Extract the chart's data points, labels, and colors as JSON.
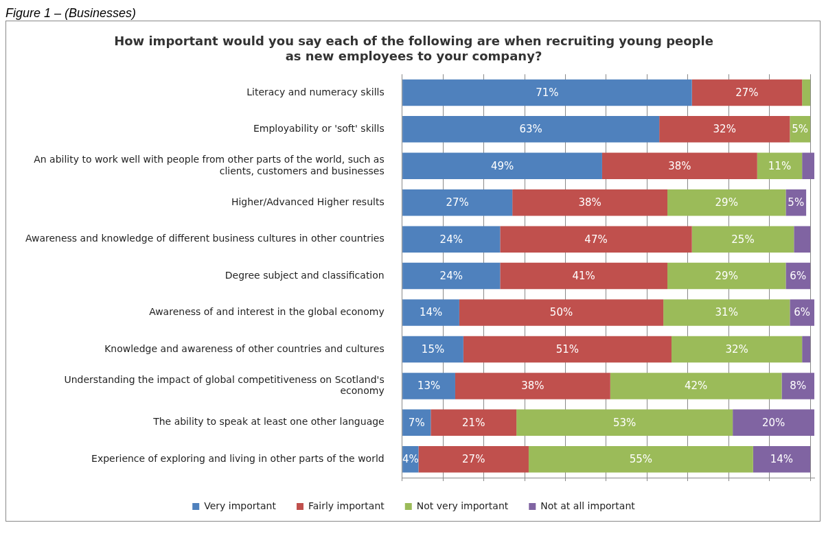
{
  "chart_data": {
    "type": "bar",
    "orientation": "horizontal",
    "stacked": true,
    "title": "How important would you say each of the following are when recruiting young people as new employees to your company?",
    "annotations": [
      "Figure 1 – (Businesses)"
    ],
    "categories": [
      "Literacy and numeracy skills",
      "Employability or 'soft' skills",
      "An ability to work well with people from other parts of the world, such as clients, customers and businesses",
      "Higher/Advanced Higher results",
      "Awareness and knowledge of different business cultures in other countries",
      "Degree subject and classification",
      "Awareness of and interest in the global economy",
      "Knowledge and awareness of other countries and cultures",
      "Understanding the impact of global competitiveness on Scotland's economy",
      "The ability to speak at least one other language",
      "Experience of exploring and living in other parts of the world"
    ],
    "series": [
      {
        "name": "Very important",
        "color": "#4f81bd",
        "values": [
          71,
          63,
          49,
          27,
          24,
          24,
          14,
          15,
          13,
          7,
          4
        ],
        "value_labels": [
          "71%",
          "63%",
          "49%",
          "27%",
          "24%",
          "24%",
          "14%",
          "15%",
          "13%",
          "7%",
          "4%"
        ]
      },
      {
        "name": "Fairly important",
        "color": "#c0504d",
        "values": [
          27,
          32,
          38,
          38,
          47,
          41,
          50,
          51,
          38,
          21,
          27
        ],
        "value_labels": [
          "27%",
          "32%",
          "38%",
          "38%",
          "47%",
          "41%",
          "50%",
          "51%",
          "38%",
          "21%",
          "27%"
        ]
      },
      {
        "name": "Not very important",
        "color": "#9bbb59",
        "values": [
          2,
          5,
          11,
          29,
          25,
          29,
          31,
          32,
          42,
          53,
          55
        ],
        "value_labels": [
          null,
          "5%",
          "11%",
          "29%",
          "25%",
          "29%",
          "31%",
          "32%",
          "42%",
          "53%",
          "55%"
        ]
      },
      {
        "name": "Not at all important",
        "color": "#8064a2",
        "values": [
          0,
          0,
          3,
          5,
          4,
          6,
          6,
          2,
          8,
          20,
          14
        ],
        "value_labels": [
          null,
          null,
          null,
          "5%",
          null,
          "6%",
          "6%",
          null,
          "8%",
          "20%",
          "14%"
        ]
      }
    ],
    "xlim": [
      0,
      101
    ],
    "xticks": [
      {
        "value": 0,
        "label": null
      },
      {
        "value": 10,
        "label": null
      },
      {
        "value": 20,
        "label": null
      },
      {
        "value": 30,
        "label": null
      },
      {
        "value": 40,
        "label": null
      },
      {
        "value": 50,
        "label": null
      },
      {
        "value": 60,
        "label": null
      },
      {
        "value": 70,
        "label": null
      },
      {
        "value": 80,
        "label": null
      },
      {
        "value": 90,
        "label": null
      },
      {
        "value": 100,
        "label": null
      }
    ],
    "tick_labels": "y",
    "grid": "x",
    "legend": "bottom"
  }
}
